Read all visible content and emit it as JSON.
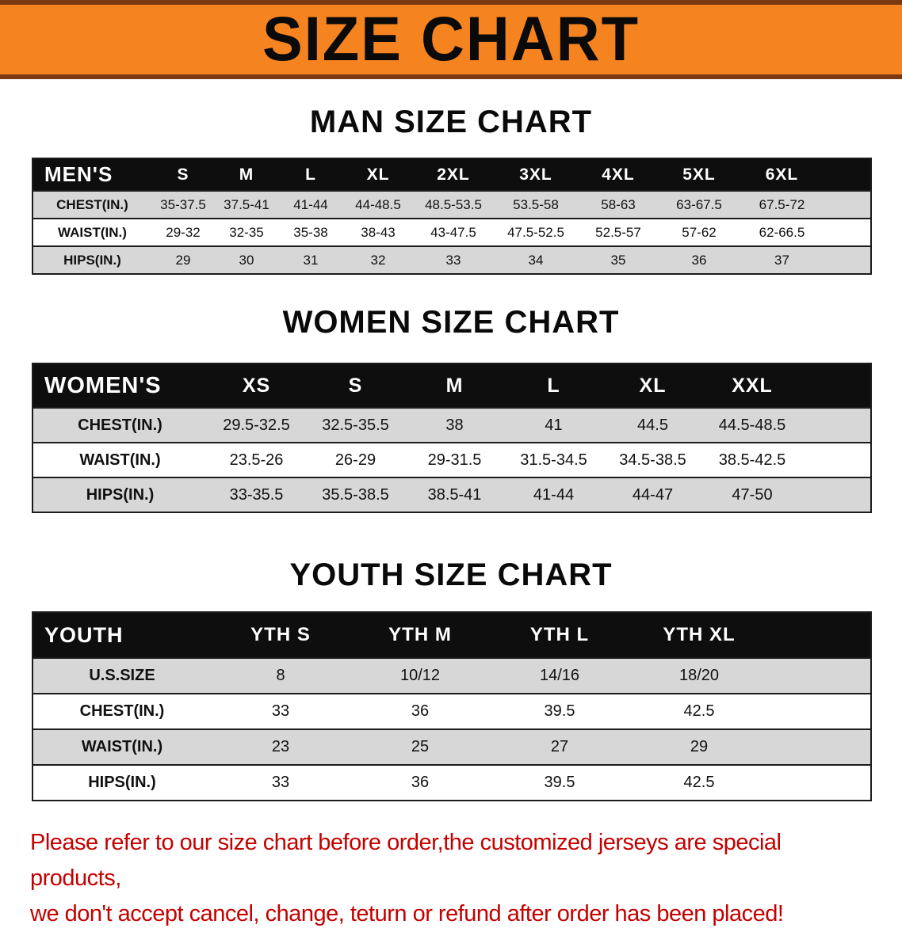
{
  "banner": {
    "title": "SIZE CHART"
  },
  "sections": [
    {
      "heading": "MAN SIZE CHART",
      "table": {
        "header": [
          "MEN'S",
          "S",
          "M",
          "L",
          "XL",
          "2XL",
          "3XL",
          "4XL",
          "5XL",
          "6XL"
        ],
        "rows": [
          [
            "CHEST(IN.)",
            "35-37.5",
            "37.5-41",
            "41-44",
            "44-48.5",
            "48.5-53.5",
            "53.5-58",
            "58-63",
            "63-67.5",
            "67.5-72"
          ],
          [
            "WAIST(IN.)",
            "29-32",
            "32-35",
            "35-38",
            "38-43",
            "43-47.5",
            "47.5-52.5",
            "52.5-57",
            "57-62",
            "62-66.5"
          ],
          [
            "HIPS(IN.)",
            "29",
            "30",
            "31",
            "32",
            "33",
            "34",
            "35",
            "36",
            "37"
          ]
        ]
      }
    },
    {
      "heading": "WOMEN SIZE CHART",
      "table": {
        "header": [
          "WOMEN'S",
          "XS",
          "S",
          "M",
          "L",
          "XL",
          "XXL"
        ],
        "rows": [
          [
            "CHEST(IN.)",
            "29.5-32.5",
            "32.5-35.5",
            "38",
            "41",
            "44.5",
            "44.5-48.5"
          ],
          [
            "WAIST(IN.)",
            "23.5-26",
            "26-29",
            "29-31.5",
            "31.5-34.5",
            "34.5-38.5",
            "38.5-42.5"
          ],
          [
            "HIPS(IN.)",
            "33-35.5",
            "35.5-38.5",
            "38.5-41",
            "41-44",
            "44-47",
            "47-50"
          ]
        ]
      }
    },
    {
      "heading": "YOUTH SIZE CHART",
      "table": {
        "header": [
          "YOUTH",
          "YTH S",
          "YTH M",
          "YTH L",
          "YTH XL"
        ],
        "rows": [
          [
            "U.S.SIZE",
            "8",
            "10/12",
            "14/16",
            "18/20"
          ],
          [
            "CHEST(IN.)",
            "33",
            "36",
            "39.5",
            "42.5"
          ],
          [
            "WAIST(IN.)",
            "23",
            "25",
            "27",
            "29"
          ],
          [
            "HIPS(IN.)",
            "33",
            "36",
            "39.5",
            "42.5"
          ]
        ]
      }
    }
  ],
  "disclaimer": {
    "lines": [
      "Please refer to our size chart before order,the customized jerseys are special products,",
      "we don't accept cancel, change, teturn or refund after order has been placed!"
    ]
  },
  "colors": {
    "banner_bg": "#f5831f",
    "banner_border": "#7a3910",
    "table_header_bg": "#0e0e0e",
    "row_alt_bg": "#d7d7d7",
    "disclaimer_text": "#c40000"
  }
}
